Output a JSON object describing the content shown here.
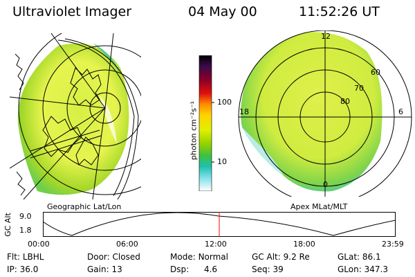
{
  "header": {
    "title": "Ultraviolet Imager",
    "date": "04 May 00",
    "time": "11:52:26 UT"
  },
  "panels": {
    "left_label": "Geographic Lat/Lon",
    "right_label": "Apex MLat/MLT"
  },
  "colorbar": {
    "unit_label": "photon cm⁻²s⁻¹",
    "tick_100": "100",
    "tick_10": "10"
  },
  "polar": {
    "mlt_labels": [
      "12",
      "18",
      "6",
      "0"
    ],
    "mlat_labels": [
      "60",
      "70",
      "80"
    ]
  },
  "orbit": {
    "axis_label": "GC Alt",
    "y_ticks": [
      "9.0",
      "1.8"
    ],
    "x_ticks": [
      "00:00",
      "06:00",
      "12:00",
      "18:00",
      "23:59"
    ],
    "current_time_fraction": 0.5
  },
  "footer": {
    "row1": [
      {
        "key": "Flt:",
        "val": "LBHL"
      },
      {
        "key": "Door:",
        "val": "Closed"
      },
      {
        "key": "Mode:",
        "val": "Normal"
      },
      {
        "key": "GC Alt:",
        "val": "9.2 Re"
      },
      {
        "key": "GLat:",
        "val": "86.1"
      }
    ],
    "row2": [
      {
        "key": "IP:",
        "val": "36.0"
      },
      {
        "key": "Gain:",
        "val": "13"
      },
      {
        "key": "Dsp:",
        "val": "4.6"
      },
      {
        "key": "Seq:",
        "val": "39"
      },
      {
        "key": "GLon:",
        "val": "347.3"
      }
    ]
  },
  "colors": {
    "high": "#000000",
    "mid": "#ff9900",
    "low_green": "#88cc00",
    "yellow": "#ffff66",
    "cyan": "#33cccc",
    "marker": "#ff0000"
  }
}
